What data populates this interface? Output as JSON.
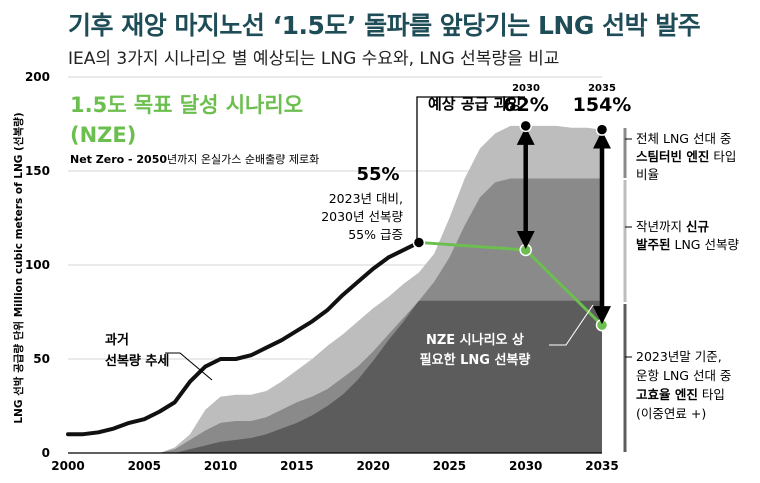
{
  "title": "기후 재앙 마지노선 ‘1.5도’ 돌파를 앞당기는 LNG 선박 발주",
  "subtitle": "IEA의 3가지 시나리오 별 예상되는 LNG 수요와, LNG 선복량을 비교",
  "scenario": {
    "title_line1": "1.5도 목표 달성 시나리오",
    "title_line2": "(NZE)",
    "desc_bold": "Net Zero - 2050",
    "desc_rest": "년까지 온실가스 순배출량 제로화"
  },
  "annotations": {
    "pct_2023": "55%",
    "pct_2023_note": [
      "2023년 대비,",
      "2030년 선복량",
      "55% 급증"
    ],
    "oversupply": "예상 공급 과잉",
    "label_2030": "2030",
    "pct_2030": "62%",
    "label_2035": "2035",
    "pct_2035": "154%",
    "history": [
      "과거",
      "선복량 추세"
    ],
    "nze_need": [
      "NZE 시나리오 상",
      "필요한 LNG 선복량"
    ]
  },
  "right_legend": {
    "steam": [
      "전체 LNG 선대 중",
      "스팀터빈 엔진",
      " 타입",
      "비율"
    ],
    "new": [
      "작년까지 ",
      "신규",
      "발주된",
      " LNG 선복량"
    ],
    "efficient": [
      "2023년말 기준,",
      "운항 LNG 선대 중",
      "고효율 엔진",
      " 타입",
      "(이중연료 +)"
    ]
  },
  "colors": {
    "title": "#1f4d57",
    "green": "#6cbf4f",
    "light_gray": "#bdbdbd",
    "mid_gray": "#8a8a8a",
    "dark_gray": "#5c5c5c",
    "line": "#111111"
  },
  "chart_data": {
    "type": "area",
    "xlabel": "",
    "ylabel": "LNG 선박 공급량 단위  Million cubic meters of LNG (선복량)",
    "xlim": [
      2000,
      2035
    ],
    "ylim": [
      0,
      200
    ],
    "x_ticks": [
      2000,
      2005,
      2010,
      2015,
      2020,
      2025,
      2030,
      2035
    ],
    "y_ticks": [
      0,
      50,
      100,
      150,
      200
    ],
    "series": [
      {
        "name": "과거 선복량 추세",
        "kind": "line",
        "x": [
          2000,
          2001,
          2002,
          2003,
          2004,
          2005,
          2006,
          2007,
          2008,
          2009,
          2010,
          2011,
          2012,
          2013,
          2014,
          2015,
          2016,
          2017,
          2018,
          2019,
          2020,
          2021,
          2022,
          2023
        ],
        "y": [
          10,
          10,
          11,
          13,
          16,
          18,
          22,
          27,
          38,
          46,
          50,
          50,
          52,
          56,
          60,
          65,
          70,
          76,
          84,
          91,
          98,
          104,
          108,
          112
        ]
      },
      {
        "name": "작년까지 신규 발주된 LNG 선복량",
        "kind": "area",
        "x": [
          2006,
          2007,
          2008,
          2009,
          2010,
          2011,
          2012,
          2013,
          2014,
          2015,
          2016,
          2017,
          2018,
          2019,
          2020,
          2021,
          2022,
          2023,
          2024,
          2025,
          2026,
          2027,
          2028,
          2029,
          2030,
          2031,
          2032,
          2033,
          2034,
          2035
        ],
        "y": [
          0,
          3,
          10,
          23,
          30,
          31,
          31,
          33,
          38,
          44,
          50,
          57,
          63,
          70,
          77,
          83,
          90,
          96,
          106,
          125,
          146,
          162,
          170,
          174,
          174,
          174,
          174,
          173,
          173,
          172
        ]
      },
      {
        "name": "전체 LNG 선대 중 스팀터빈 엔진 타입 비율",
        "kind": "area",
        "x": [
          2006,
          2007,
          2008,
          2009,
          2010,
          2011,
          2012,
          2013,
          2014,
          2015,
          2016,
          2017,
          2018,
          2019,
          2020,
          2021,
          2022,
          2023,
          2024,
          2025,
          2026,
          2027,
          2028,
          2029,
          2030,
          2031,
          2032,
          2033,
          2034,
          2035
        ],
        "y": [
          0,
          2,
          7,
          12,
          16,
          17,
          17,
          19,
          23,
          27,
          30,
          34,
          40,
          46,
          54,
          63,
          72,
          81,
          91,
          104,
          121,
          136,
          144,
          146,
          146,
          146,
          146,
          146,
          146,
          146
        ]
      },
      {
        "name": "2023년말 기준 운항 LNG 선대 중 고효율 엔진 타입 (이중연료 +)",
        "kind": "area",
        "x": [
          2007,
          2008,
          2009,
          2010,
          2011,
          2012,
          2013,
          2014,
          2015,
          2016,
          2017,
          2018,
          2019,
          2020,
          2021,
          2022,
          2023,
          2025,
          2030,
          2035
        ],
        "y": [
          0,
          2,
          4,
          6,
          7,
          8,
          10,
          13,
          16,
          20,
          25,
          31,
          39,
          49,
          60,
          70,
          81,
          81,
          81,
          81
        ]
      },
      {
        "name": "NZE 시나리오 상 필요한 LNG 선복량",
        "kind": "line",
        "x": [
          2023,
          2030,
          2035
        ],
        "y": [
          112,
          108,
          68
        ]
      }
    ],
    "markers": [
      {
        "x": 2023,
        "y": 112,
        "label": "55%"
      },
      {
        "x": 2030,
        "y": 174,
        "label": "62%"
      },
      {
        "x": 2035,
        "y": 172,
        "label": "154%"
      }
    ]
  }
}
